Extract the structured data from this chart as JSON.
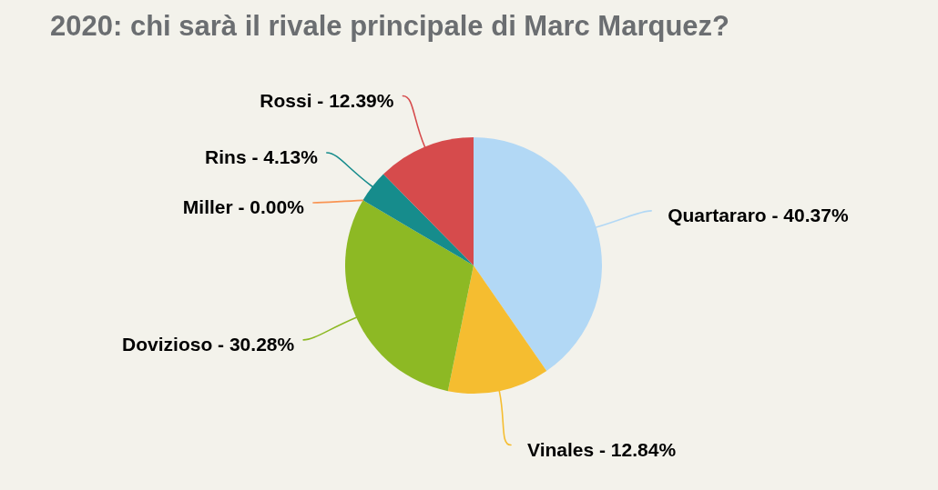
{
  "chart_data": {
    "type": "pie",
    "title": "2020: chi sarà il rivale principale di Marc Marquez?",
    "categories": [
      "Quartararo -",
      "Vinales -",
      "Dovizioso -",
      "Miller -",
      "Rins -",
      "Rossi -"
    ],
    "values": [
      40.37,
      12.84,
      30.28,
      0,
      4.13,
      12.39
    ],
    "colors": [
      "#b2d8f5",
      "#f5bd30",
      "#8db924",
      "#f99452",
      "#168c8c",
      "#d64b4c"
    ],
    "value_labels": [
      "40.37%",
      "12.84%",
      "30.28%",
      "0.00%",
      "4.13%",
      "12.39%"
    ]
  }
}
